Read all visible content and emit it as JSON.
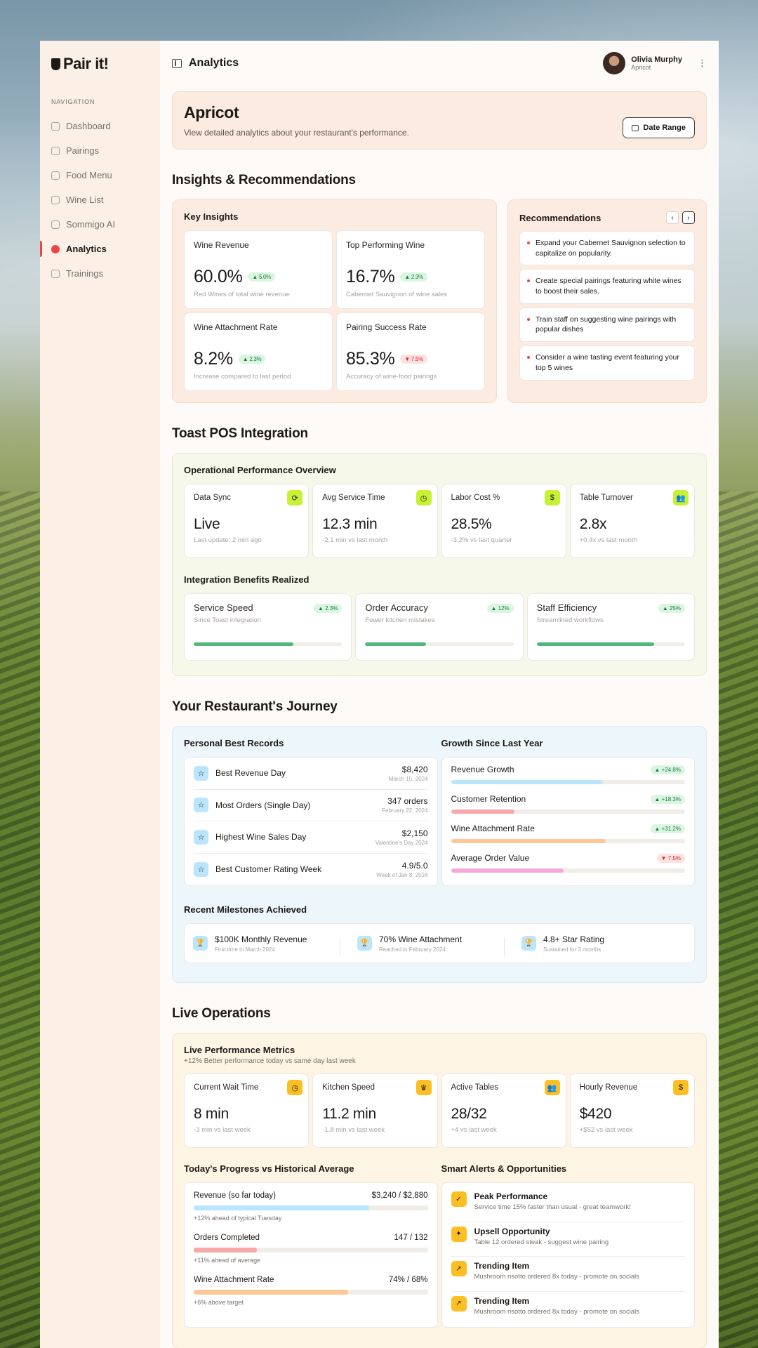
{
  "brand": "Pair it!",
  "sidebar": {
    "heading": "NAVIGATION",
    "items": [
      {
        "label": "Dashboard",
        "icon": "grid-icon"
      },
      {
        "label": "Pairings",
        "icon": "heart-icon"
      },
      {
        "label": "Food Menu",
        "icon": "utensils-icon"
      },
      {
        "label": "Wine List",
        "icon": "wine-glass-icon"
      },
      {
        "label": "Sommigo AI",
        "icon": "chat-icon"
      },
      {
        "label": "Analytics",
        "icon": "pie-chart-icon",
        "active": true
      },
      {
        "label": "Trainings",
        "icon": "graduation-cap-icon"
      }
    ]
  },
  "header": {
    "title": "Analytics",
    "user_name": "Olivia Murphy",
    "user_org": "Apricot"
  },
  "hero": {
    "title": "Apricot",
    "subtitle": "View detailed analytics about your restaurant's performance.",
    "date_button": "Date Range"
  },
  "insights": {
    "section_title": "Insights & Recommendations",
    "key_title": "Key Insights",
    "cards": [
      {
        "title": "Wine Revenue",
        "value": "60.0%",
        "change": "▲ 5.0%",
        "trend": "up",
        "note": "Red Wines of total wine revenue"
      },
      {
        "title": "Top Performing Wine",
        "value": "16.7%",
        "change": "▲ 2.3%",
        "trend": "up",
        "note": "Cabernet Sauvignon of wine sales"
      },
      {
        "title": "Wine Attachment Rate",
        "value": "8.2%",
        "change": "▲ 2.3%",
        "trend": "up",
        "note": "Increase compared to last period"
      },
      {
        "title": "Pairing Success Rate",
        "value": "85.3%",
        "change": "▼ 7.5%",
        "trend": "down",
        "note": "Accuracy of wine-food pairings"
      }
    ],
    "rec_title": "Recommendations",
    "recommendations": [
      "Expand your Cabernet Sauvignon selection to capitalize on popularity.",
      "Create special pairings featuring white wines to boost their sales.",
      "Train staff on suggesting wine pairings with popular dishes",
      "Consider a wine tasting event featuring your top 5 wines"
    ]
  },
  "pos": {
    "section_title": "Toast POS Integration",
    "overview_title": "Operational Performance Overview",
    "metrics": [
      {
        "title": "Data Sync",
        "value": "Live",
        "note": "Last update: 2 min ago",
        "icon": "refresh-icon"
      },
      {
        "title": "Avg Service Time",
        "value": "12.3 min",
        "note": "-2.1 min vs last month",
        "icon": "clock-icon"
      },
      {
        "title": "Labor Cost %",
        "value": "28.5%",
        "note": "-3.2% vs last quarter",
        "icon": "dollar-icon"
      },
      {
        "title": "Table Turnover",
        "value": "2.8x",
        "note": "+0.4x vs last month",
        "icon": "users-icon"
      }
    ],
    "benefits_title": "Integration Benefits Realized",
    "benefits": [
      {
        "title": "Service Speed",
        "change": "▲ 2.3%",
        "note": "Since Toast integration",
        "progress": 0.67
      },
      {
        "title": "Order Accuracy",
        "change": "▲ 12%",
        "note": "Fewer kitchen mistakes",
        "progress": 0.41
      },
      {
        "title": "Staff Efficiency",
        "change": "▲ 25%",
        "note": "Streamlined workflows",
        "progress": 0.79
      }
    ]
  },
  "journey": {
    "section_title": "Your Restaurant's Journey",
    "records_title": "Personal Best Records",
    "records": [
      {
        "name": "Best Revenue Day",
        "value": "$8,420",
        "date": "March 15, 2024"
      },
      {
        "name": "Most Orders (Single Day)",
        "value": "347 orders",
        "date": "February 22, 2024"
      },
      {
        "name": "Highest Wine Sales Day",
        "value": "$2,150",
        "date": "Valentine's Day 2024"
      },
      {
        "name": "Best Customer Rating Week",
        "value": "4.9/5.0",
        "date": "Week of Jan 8, 2024"
      }
    ],
    "growth_title": "Growth Since Last Year",
    "growth": [
      {
        "name": "Revenue Growth",
        "change": "▲ +24.8%",
        "trend": "up",
        "progress": 0.65,
        "color": "#bae6fd"
      },
      {
        "name": "Customer Retention",
        "change": "▲ +18.3%",
        "trend": "up",
        "progress": 0.27,
        "color": "#f9a8a8"
      },
      {
        "name": "Wine Attachment Rate",
        "change": "▲ +31.2%",
        "trend": "up",
        "progress": 0.66,
        "color": "#fcc897"
      },
      {
        "name": "Average Order Value",
        "change": "▼ 7.5%",
        "trend": "down",
        "progress": 0.48,
        "color": "#f5a8dc"
      }
    ],
    "milestones_title": "Recent Milestones Achieved",
    "milestones": [
      {
        "title": "$100K Monthly Revenue",
        "note": "First time in March 2024"
      },
      {
        "title": "70% Wine Attachment",
        "note": "Reached in February 2024"
      },
      {
        "title": "4.8+ Star Rating",
        "note": "Sustained for 3 months"
      }
    ]
  },
  "live": {
    "section_title": "Live Operations",
    "metrics_title": "Live Performance Metrics",
    "metrics_sub": "+12% Better performance today vs same day last week",
    "metrics": [
      {
        "title": "Current Wait Time",
        "value": "8 min",
        "note": "-3 min vs last week",
        "icon": "clock-icon"
      },
      {
        "title": "Kitchen Speed",
        "value": "11.2 min",
        "note": "-1.8 min vs last week",
        "icon": "chef-hat-icon"
      },
      {
        "title": "Active Tables",
        "value": "28/32",
        "note": "+4 vs last week",
        "icon": "users-icon"
      },
      {
        "title": "Hourly Revenue",
        "value": "$420",
        "note": "+$52 vs last week",
        "icon": "dollar-icon"
      }
    ],
    "progress_title": "Today's Progress vs Historical Average",
    "progress": [
      {
        "name": "Revenue (so far today)",
        "value": "$3,240 / $2,880",
        "note": "+12% ahead of typical Tuesday",
        "progress": 0.75,
        "color": "#bae6fd"
      },
      {
        "name": "Orders Completed",
        "value": "147 / 132",
        "note": "+11% ahead of average",
        "progress": 0.27,
        "color": "#f9a8a8"
      },
      {
        "name": "Wine Attachment Rate",
        "value": "74% / 68%",
        "note": "+6% above target",
        "progress": 0.66,
        "color": "#fcc897"
      }
    ],
    "alerts_title": "Smart Alerts & Opportunities",
    "alerts": [
      {
        "title": "Peak Performance",
        "note": "Service time 15% faster than usual - great teamwork!",
        "icon": "check-circle-icon"
      },
      {
        "title": "Upsell Opportunity",
        "note": "Table 12 ordered steak - suggest wine pairing",
        "icon": "lightbulb-icon"
      },
      {
        "title": "Trending Item",
        "note": "Mushroom risotto ordered 8x today - promote on socials",
        "icon": "trending-up-icon"
      },
      {
        "title": "Trending Item",
        "note": "Mushroom risotto ordered 8x today - promote on socials",
        "icon": "trending-up-icon"
      }
    ]
  }
}
